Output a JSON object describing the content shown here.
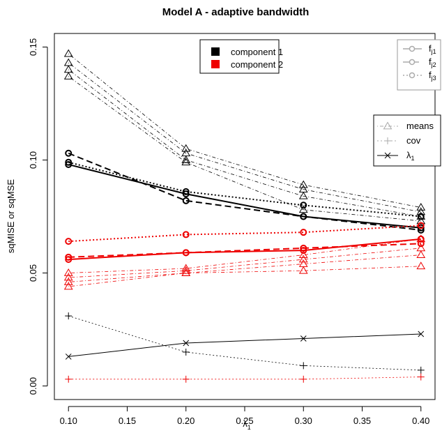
{
  "chart_data": {
    "type": "line",
    "title": "Model A - adaptive bandwidth",
    "xlabel": "λ",
    "xlabel_sub": "1",
    "ylabel": "sqMISE or sqMSE",
    "xlim": [
      0.088,
      0.412
    ],
    "ylim": [
      -0.006,
      0.156
    ],
    "x": [
      0.1,
      0.2,
      0.3,
      0.4
    ],
    "x_ticks": [
      "0.10",
      "0.15",
      "0.20",
      "0.25",
      "0.30",
      "0.35",
      "0.40"
    ],
    "x_tick_values": [
      0.1,
      0.15,
      0.2,
      0.25,
      0.3,
      0.35,
      0.4
    ],
    "y_ticks": [
      "0.00",
      "0.05",
      "0.10",
      "0.15"
    ],
    "y_tick_values": [
      0.0,
      0.05,
      0.1,
      0.15
    ],
    "colors": {
      "component1": "#000000",
      "component2": "#ee0000",
      "legend_grey": "#aaaaaa"
    },
    "series": [
      {
        "group": "fj",
        "component": 1,
        "name": "f_j1",
        "style": "solid",
        "marker": "circle",
        "values": [
          0.098,
          0.085,
          0.075,
          0.07
        ]
      },
      {
        "group": "fj",
        "component": 1,
        "name": "f_j2",
        "style": "longdash",
        "marker": "circle",
        "values": [
          0.103,
          0.082,
          0.075,
          0.069
        ]
      },
      {
        "group": "fj",
        "component": 1,
        "name": "f_j3",
        "style": "dotted",
        "marker": "circle",
        "values": [
          0.099,
          0.086,
          0.08,
          0.075
        ]
      },
      {
        "group": "fj",
        "component": 2,
        "name": "f_j1",
        "style": "solid",
        "marker": "circle",
        "values": [
          0.056,
          0.059,
          0.06,
          0.065
        ]
      },
      {
        "group": "fj",
        "component": 2,
        "name": "f_j2",
        "style": "longdash",
        "marker": "circle",
        "values": [
          0.057,
          0.059,
          0.061,
          0.063
        ]
      },
      {
        "group": "fj",
        "component": 2,
        "name": "f_j3",
        "style": "dotted",
        "marker": "circle",
        "values": [
          0.064,
          0.067,
          0.068,
          0.071
        ]
      },
      {
        "group": "means",
        "component": 1,
        "style": "dashdot",
        "marker": "triangle",
        "values": [
          0.147,
          0.105,
          0.089,
          0.079
        ]
      },
      {
        "group": "means",
        "component": 1,
        "style": "dashdot",
        "marker": "triangle",
        "values": [
          0.143,
          0.103,
          0.087,
          0.077
        ]
      },
      {
        "group": "means",
        "component": 1,
        "style": "dashdot",
        "marker": "triangle",
        "values": [
          0.14,
          0.1,
          0.084,
          0.075
        ]
      },
      {
        "group": "means",
        "component": 1,
        "style": "dashdot",
        "marker": "triangle",
        "values": [
          0.137,
          0.099,
          0.078,
          0.073
        ]
      },
      {
        "group": "means",
        "component": 2,
        "style": "dashdot",
        "marker": "triangle",
        "values": [
          0.05,
          0.052,
          0.058,
          0.065
        ]
      },
      {
        "group": "means",
        "component": 2,
        "style": "dashdot",
        "marker": "triangle",
        "values": [
          0.048,
          0.051,
          0.056,
          0.061
        ]
      },
      {
        "group": "means",
        "component": 2,
        "style": "dashdot",
        "marker": "triangle",
        "values": [
          0.046,
          0.05,
          0.054,
          0.058
        ]
      },
      {
        "group": "means",
        "component": 2,
        "style": "dashdot",
        "marker": "triangle",
        "values": [
          0.044,
          0.05,
          0.051,
          0.053
        ]
      },
      {
        "group": "cov",
        "component": 1,
        "style": "dotted",
        "marker": "plus",
        "values": [
          0.031,
          0.015,
          0.009,
          0.007
        ]
      },
      {
        "group": "cov",
        "component": 2,
        "style": "dotted",
        "marker": "plus",
        "values": [
          0.003,
          0.003,
          0.003,
          0.004
        ]
      },
      {
        "group": "lambda",
        "component": 1,
        "style": "solid",
        "marker": "cross",
        "values": [
          0.013,
          0.019,
          0.021,
          0.023
        ]
      }
    ],
    "legends": {
      "components": {
        "position": "top-center",
        "items": [
          "component 1",
          "component 2"
        ]
      },
      "fj": {
        "position": "top-right",
        "items": [
          {
            "label": "f",
            "sub": "j1"
          },
          {
            "label": "f",
            "sub": "j2"
          },
          {
            "label": "f",
            "sub": "j3"
          }
        ]
      },
      "params": {
        "position": "right",
        "items": [
          {
            "label": "means",
            "sub": ""
          },
          {
            "label": "cov",
            "sub": ""
          },
          {
            "label": "λ",
            "sub": "1"
          }
        ]
      }
    }
  }
}
